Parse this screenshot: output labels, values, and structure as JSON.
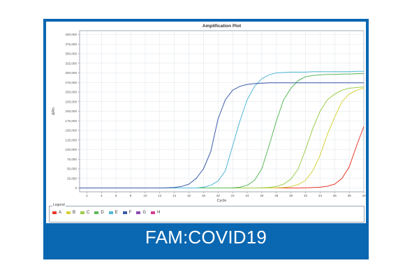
{
  "caption": "FAM:COVID19",
  "legend": {
    "title": "Legend"
  },
  "chart_data": {
    "type": "line",
    "title": "Amplification Plot",
    "xlabel": "Cycle",
    "ylabel": "ΔRn",
    "xlim": [
      1,
      40
    ],
    "ylim": [
      -10000,
      410000
    ],
    "xticks": [
      2,
      4,
      6,
      8,
      10,
      12,
      14,
      16,
      18,
      20,
      22,
      24,
      26,
      28,
      30,
      32,
      34,
      36,
      38,
      40
    ],
    "xtick_labels": [
      "2",
      "4",
      "6",
      "8",
      "10",
      "12",
      "14",
      "16",
      "18",
      "20",
      "22",
      "24",
      "26",
      "28",
      "30",
      "32",
      "34",
      "36",
      "38",
      "40"
    ],
    "yticks": [
      0,
      25000,
      50000,
      75000,
      100000,
      125000,
      150000,
      175000,
      200000,
      225000,
      250000,
      275000,
      300000,
      325000,
      350000,
      375000,
      400000
    ],
    "ytick_labels": [
      "0",
      "25,000",
      "50,000",
      "75,000",
      "100,000",
      "125,000",
      "150,000",
      "175,000",
      "200,000",
      "225,000",
      "250,000",
      "275,000",
      "300,000",
      "325,000",
      "350,000",
      "375,000",
      "400,000"
    ],
    "grid": true,
    "legend_position": "bottom",
    "x": [
      1,
      2,
      3,
      4,
      5,
      6,
      7,
      8,
      9,
      10,
      11,
      12,
      13,
      14,
      15,
      16,
      17,
      18,
      19,
      20,
      21,
      22,
      23,
      24,
      25,
      26,
      27,
      28,
      29,
      30,
      31,
      32,
      33,
      34,
      35,
      36,
      37,
      38,
      39,
      40
    ],
    "series": [
      {
        "name": "A",
        "color": "#e8392b",
        "values": [
          0,
          0,
          0,
          0,
          0,
          0,
          0,
          0,
          0,
          0,
          0,
          0,
          0,
          0,
          0,
          0,
          0,
          0,
          0,
          0,
          0,
          0,
          0,
          0,
          0,
          0,
          0,
          0,
          0,
          0,
          0,
          500,
          1000,
          2000,
          4500,
          10000,
          25000,
          55000,
          110000,
          160000
        ]
      },
      {
        "name": "B",
        "color": "#d6d23a",
        "values": [
          0,
          0,
          0,
          0,
          0,
          0,
          0,
          0,
          0,
          0,
          0,
          0,
          0,
          0,
          0,
          0,
          0,
          0,
          0,
          0,
          0,
          0,
          0,
          0,
          0,
          0,
          0,
          500,
          1500,
          3500,
          9000,
          20000,
          45000,
          85000,
          140000,
          185000,
          225000,
          245000,
          255000,
          260000
        ]
      },
      {
        "name": "C",
        "color": "#9ccc4a",
        "values": [
          0,
          0,
          0,
          0,
          0,
          0,
          0,
          0,
          0,
          0,
          0,
          0,
          0,
          0,
          0,
          0,
          0,
          0,
          0,
          0,
          0,
          0,
          0,
          0,
          0,
          500,
          1500,
          4000,
          10000,
          23000,
          50000,
          100000,
          155000,
          200000,
          230000,
          245000,
          255000,
          260000,
          262000,
          263000
        ]
      },
      {
        "name": "D",
        "color": "#5bb85b",
        "values": [
          0,
          0,
          0,
          0,
          0,
          0,
          0,
          0,
          0,
          0,
          0,
          0,
          0,
          0,
          0,
          0,
          0,
          0,
          0,
          0,
          0,
          500,
          2000,
          7000,
          20000,
          50000,
          110000,
          175000,
          230000,
          260000,
          280000,
          290000,
          293000,
          295000,
          296000,
          296000,
          297000,
          297000,
          298000,
          298000
        ]
      },
      {
        "name": "E",
        "color": "#4fb7d6",
        "values": [
          0,
          0,
          0,
          0,
          0,
          0,
          0,
          0,
          0,
          0,
          0,
          0,
          0,
          0,
          0,
          0,
          0,
          2000,
          7000,
          18000,
          45000,
          110000,
          175000,
          230000,
          265000,
          285000,
          295000,
          300000,
          301000,
          302000,
          302000,
          302000,
          303000,
          303000,
          303000,
          303000,
          303000,
          303000,
          304000,
          304000
        ]
      },
      {
        "name": "F",
        "color": "#3a5aa8",
        "values": [
          0,
          0,
          0,
          0,
          0,
          0,
          0,
          0,
          0,
          0,
          0,
          0,
          500,
          1500,
          4000,
          10000,
          25000,
          50000,
          95000,
          180000,
          230000,
          255000,
          265000,
          270000,
          272000,
          273000,
          274000,
          274000,
          274000,
          274000,
          274000,
          274000,
          274000,
          274000,
          274000,
          274000,
          274000,
          274000,
          274000,
          274000
        ]
      }
    ],
    "legend_entries": [
      {
        "name": "A",
        "color": "#e8392b"
      },
      {
        "name": "B",
        "color": "#d6d23a"
      },
      {
        "name": "C",
        "color": "#9ccc4a"
      },
      {
        "name": "D",
        "color": "#5bb85b"
      },
      {
        "name": "E",
        "color": "#4fb7d6"
      },
      {
        "name": "F",
        "color": "#3a5aa8"
      },
      {
        "name": "G",
        "color": "#8b4bb3"
      },
      {
        "name": "H",
        "color": "#d63a8f"
      }
    ]
  }
}
